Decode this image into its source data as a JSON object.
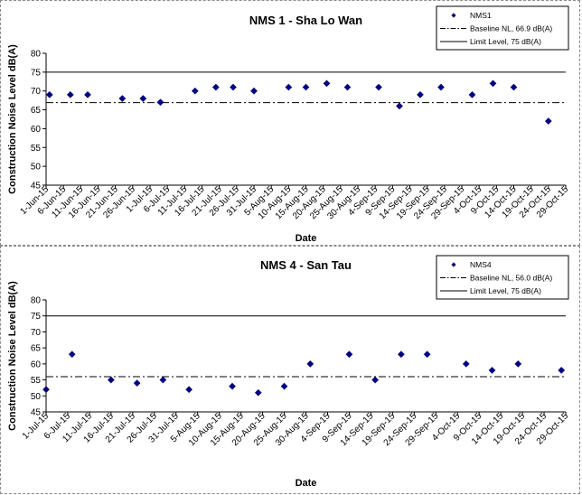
{
  "chart_data": [
    {
      "type": "scatter",
      "title": "NMS 1 - Sha Lo Wan",
      "xlabel": "Date",
      "ylabel": "Construction Noise Level  dB(A)",
      "ylim": [
        45,
        80
      ],
      "yticks": [
        45,
        50,
        55,
        60,
        65,
        70,
        75,
        80
      ],
      "categories": [
        "1-Jun-15",
        "6-Jun-15",
        "11-Jun-15",
        "16-Jun-15",
        "21-Jun-15",
        "26-Jun-15",
        "1-Jul-15",
        "6-Jul-15",
        "11-Jul-15",
        "16-Jul-15",
        "21-Jul-15",
        "26-Jul-15",
        "31-Jul-15",
        "5-Aug-15",
        "10-Aug-15",
        "15-Aug-15",
        "20-Aug-15",
        "25-Aug-15",
        "30-Aug-15",
        "4-Sep-15",
        "9-Sep-15",
        "14-Sep-15",
        "19-Sep-15",
        "24-Sep-15",
        "29-Sep-15",
        "4-Oct-15",
        "9-Oct-15",
        "14-Oct-15",
        "19-Oct-15",
        "24-Oct-15",
        "29-Oct-15"
      ],
      "series": [
        {
          "name": "NMS1",
          "color": "#000080",
          "points": [
            {
              "x": "2-Jun-15",
              "y": 69
            },
            {
              "x": "8-Jun-15",
              "y": 69
            },
            {
              "x": "13-Jun-15",
              "y": 69
            },
            {
              "x": "23-Jun-15",
              "y": 68
            },
            {
              "x": "29-Jun-15",
              "y": 68
            },
            {
              "x": "4-Jul-15",
              "y": 67
            },
            {
              "x": "14-Jul-15",
              "y": 70
            },
            {
              "x": "20-Jul-15",
              "y": 71
            },
            {
              "x": "25-Jul-15",
              "y": 71
            },
            {
              "x": "31-Jul-15",
              "y": 70
            },
            {
              "x": "10-Aug-15",
              "y": 71
            },
            {
              "x": "15-Aug-15",
              "y": 71
            },
            {
              "x": "21-Aug-15",
              "y": 72
            },
            {
              "x": "27-Aug-15",
              "y": 71
            },
            {
              "x": "5-Sep-15",
              "y": 71
            },
            {
              "x": "11-Sep-15",
              "y": 66
            },
            {
              "x": "17-Sep-15",
              "y": 69
            },
            {
              "x": "23-Sep-15",
              "y": 71
            },
            {
              "x": "2-Oct-15",
              "y": 69
            },
            {
              "x": "8-Oct-15",
              "y": 72
            },
            {
              "x": "14-Oct-15",
              "y": 71
            },
            {
              "x": "24-Oct-15",
              "y": 62
            }
          ]
        }
      ],
      "reference_lines": [
        {
          "name": "Baseline NL, 66.9 dB(A)",
          "y": 66.9,
          "style": "dash-dot",
          "color": "#000000"
        },
        {
          "name": "Limit Level, 75 dB(A)",
          "y": 75,
          "style": "solid",
          "color": "#000000"
        }
      ],
      "legend": {
        "placement": "top-right"
      },
      "grid": false
    },
    {
      "type": "scatter",
      "title": "NMS 4 - San Tau",
      "xlabel": "Date",
      "ylabel": "Construction Noise Level  dB(A)",
      "ylim": [
        45,
        80
      ],
      "yticks": [
        45,
        50,
        55,
        60,
        65,
        70,
        75,
        80
      ],
      "categories": [
        "1-Jul-15",
        "6-Jul-15",
        "11-Jul-15",
        "16-Jul-15",
        "21-Jul-15",
        "26-Jul-15",
        "31-Jul-15",
        "5-Aug-15",
        "10-Aug-15",
        "15-Aug-15",
        "20-Aug-15",
        "25-Aug-15",
        "30-Aug-15",
        "4-Sep-15",
        "9-Sep-15",
        "14-Sep-15",
        "19-Sep-15",
        "24-Sep-15",
        "29-Sep-15",
        "4-Oct-15",
        "9-Oct-15",
        "14-Oct-15",
        "19-Oct-15",
        "24-Oct-15",
        "29-Oct-15"
      ],
      "series": [
        {
          "name": "NMS4",
          "color": "#000080",
          "points": [
            {
              "x": "1-Jul-15",
              "y": 52
            },
            {
              "x": "7-Jul-15",
              "y": 63
            },
            {
              "x": "16-Jul-15",
              "y": 55
            },
            {
              "x": "22-Jul-15",
              "y": 54
            },
            {
              "x": "28-Jul-15",
              "y": 55
            },
            {
              "x": "3-Aug-15",
              "y": 52
            },
            {
              "x": "13-Aug-15",
              "y": 53
            },
            {
              "x": "19-Aug-15",
              "y": 51
            },
            {
              "x": "25-Aug-15",
              "y": 53
            },
            {
              "x": "31-Aug-15",
              "y": 60
            },
            {
              "x": "9-Sep-15",
              "y": 63
            },
            {
              "x": "15-Sep-15",
              "y": 55
            },
            {
              "x": "21-Sep-15",
              "y": 63
            },
            {
              "x": "27-Sep-15",
              "y": 63
            },
            {
              "x": "6-Oct-15",
              "y": 60
            },
            {
              "x": "12-Oct-15",
              "y": 58
            },
            {
              "x": "18-Oct-15",
              "y": 60
            },
            {
              "x": "28-Oct-15",
              "y": 58
            }
          ]
        }
      ],
      "reference_lines": [
        {
          "name": "Baseline NL, 56.0 dB(A)",
          "y": 56.0,
          "style": "dash-dot",
          "color": "#000000"
        },
        {
          "name": "Limit Level, 75 dB(A)",
          "y": 75,
          "style": "solid",
          "color": "#000000"
        }
      ],
      "legend": {
        "placement": "top-right"
      },
      "grid": false
    }
  ]
}
